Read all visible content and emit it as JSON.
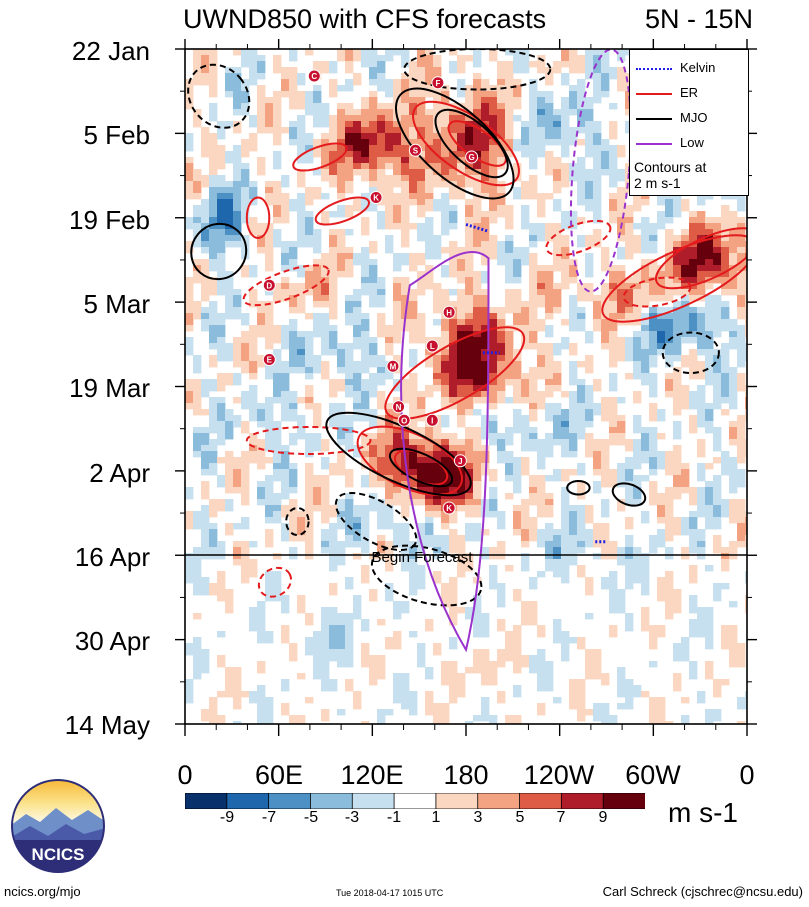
{
  "chart_data": {
    "type": "heatmap",
    "title": "UWND850 with CFS forecasts",
    "lat_band": "5N - 15N",
    "y_dates": [
      "22 Jan",
      "5 Feb",
      "19 Feb",
      "5 Mar",
      "19 Mar",
      "2 Apr",
      "16 Apr",
      "30 Apr",
      "14 May"
    ],
    "x_longitudes": [
      "0",
      "60E",
      "120E",
      "180",
      "120W",
      "60W",
      "0"
    ],
    "x_range_deg_east": [
      0,
      360
    ],
    "colorbar": {
      "labels": [
        "-9",
        "-7",
        "-5",
        "-3",
        "-1",
        "1",
        "3",
        "5",
        "7",
        "9"
      ],
      "units": "m s-1",
      "colors": [
        "#08306b",
        "#1f67ad",
        "#4d90c4",
        "#8bbcdb",
        "#c7e0ef",
        "#ffffff",
        "#fbd6c0",
        "#f3a381",
        "#de5b45",
        "#b01d2a",
        "#67000d"
      ]
    },
    "legend": [
      {
        "name": "Kelvin",
        "color": "#1f1fe6",
        "dash": "dotted"
      },
      {
        "name": "ER",
        "color": "#e41a1c",
        "dash": "solid"
      },
      {
        "name": "MJO",
        "color": "#000000",
        "dash": "solid"
      },
      {
        "name": "Low",
        "color": "#9a32cd",
        "dash": "solid"
      }
    ],
    "legend_note": [
      "Contours at",
      "2 m s-1"
    ],
    "forecast_marker": {
      "date": "16 Apr",
      "label": "Begin Forecast"
    },
    "storm_markers": [
      "C",
      "F",
      "S",
      "G",
      "K",
      "D",
      "H",
      "L",
      "E",
      "M",
      "N",
      "O",
      "J",
      "I",
      "K"
    ]
  },
  "branding": {
    "logo_text": "NCICS",
    "site": "ncics.org/mjo",
    "timestamp": "Tue 2018-04-17 1015 UTC",
    "author": "Carl Schreck (cjschrec@ncsu.edu)"
  }
}
